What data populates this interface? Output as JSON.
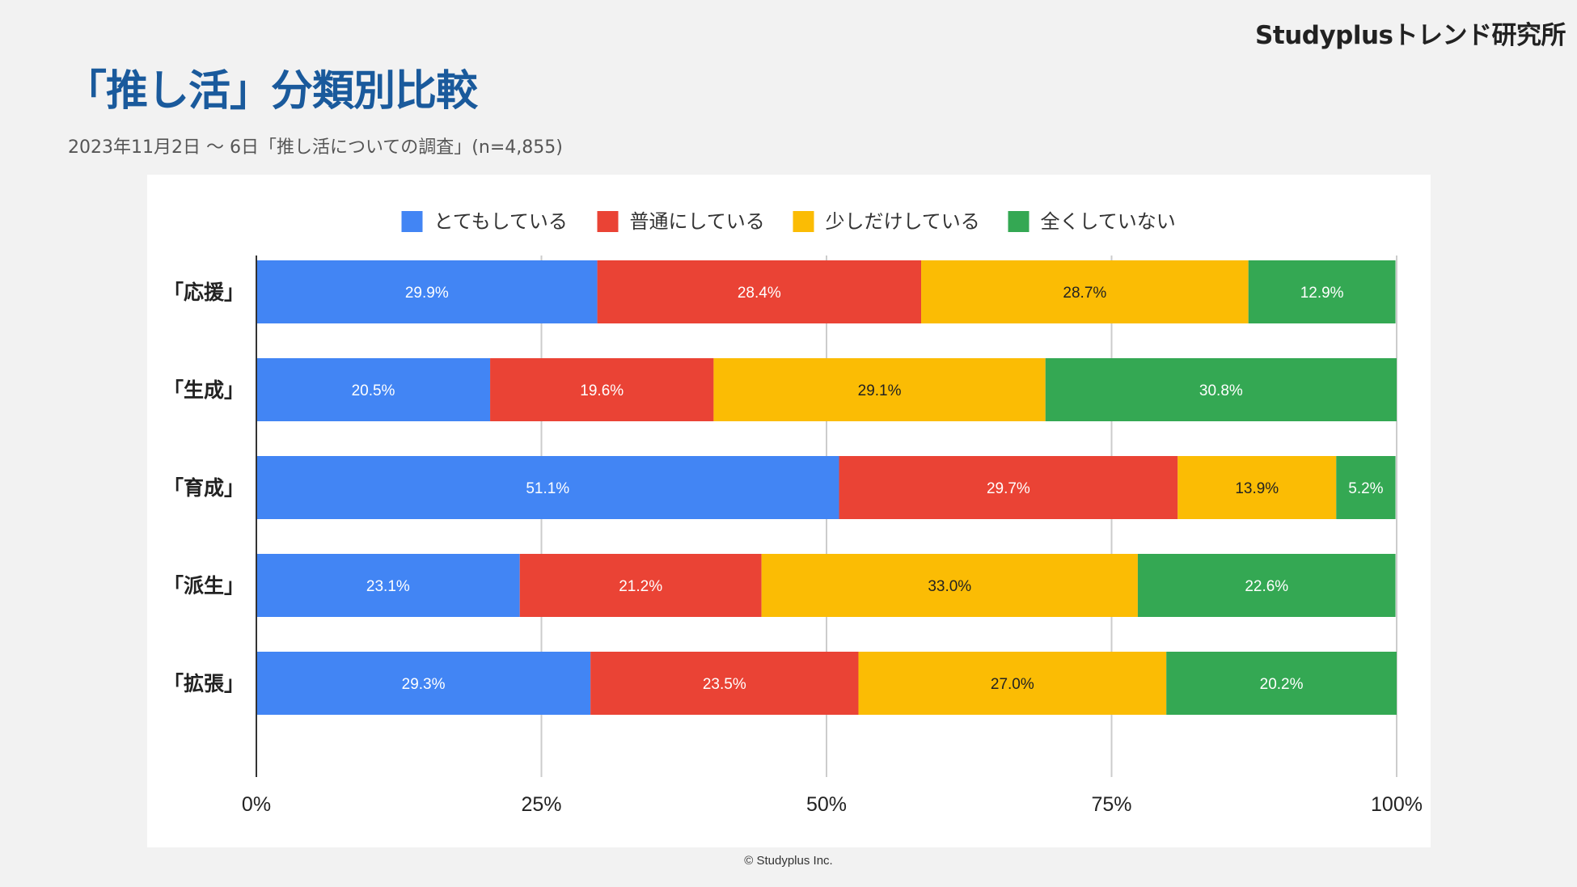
{
  "brand": "Studyplusトレンド研究所",
  "title": "「推し活」分類別比較",
  "subtitle": "2023年11月2日 〜 6日「推し活についての調査」(n=4,855)",
  "footer": "© Studyplus Inc.",
  "chart_data": {
    "type": "bar",
    "orientation": "horizontal",
    "stacked": true,
    "categories": [
      "「応援」",
      "「生成」",
      "「育成」",
      "「派生」",
      "「拡張」"
    ],
    "series": [
      {
        "name": "とてもしている",
        "color": "#4285f4",
        "label_color": "#ffffff",
        "values": [
          29.9,
          20.5,
          51.1,
          23.1,
          29.3
        ]
      },
      {
        "name": "普通にしている",
        "color": "#ea4335",
        "label_color": "#ffffff",
        "values": [
          28.4,
          19.6,
          29.7,
          21.2,
          23.5
        ]
      },
      {
        "name": "少しだけしている",
        "color": "#fbbc04",
        "label_color": "#222222",
        "values": [
          28.7,
          29.1,
          13.9,
          33.0,
          27.0
        ]
      },
      {
        "name": "全くしていない",
        "color": "#34a853",
        "label_color": "#ffffff",
        "values": [
          12.9,
          30.8,
          5.2,
          22.6,
          20.2
        ]
      }
    ],
    "x_ticks": [
      "0%",
      "25%",
      "50%",
      "75%",
      "100%"
    ],
    "xlim": [
      0,
      100
    ],
    "legend_position": "top",
    "grid": true
  }
}
